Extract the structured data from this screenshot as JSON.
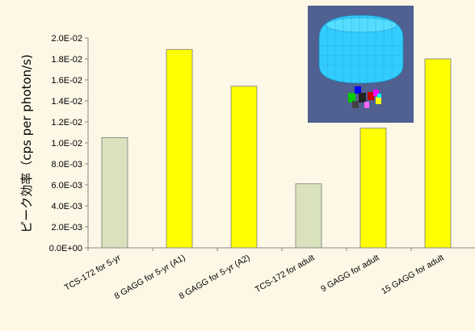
{
  "chart_data": {
    "type": "bar",
    "title": "",
    "xlabel": "",
    "ylabel": "ピーク効率（cps per photon/s)",
    "ylim": [
      0,
      0.02
    ],
    "yticks": [
      "0.0E+00",
      "2.0E-03",
      "4.0E-03",
      "6.0E-03",
      "8.0E-03",
      "1.0E-02",
      "1.2E-02",
      "1.4E-02",
      "1.6E-02",
      "1.8E-02",
      "2.0E-02"
    ],
    "categories": [
      "TCS-172 for 5-yr",
      "8 GAGG for 5-yr (A1)",
      "8 GAGG for 5-yr (A2)",
      "TCS-172 for adult",
      "9 GAGG for adult",
      "15 GAGG for adult"
    ],
    "values": [
      0.0105,
      0.0189,
      0.0154,
      0.0061,
      0.0114,
      0.018
    ],
    "bar_colors": [
      "#d9e2bc",
      "#ffff00",
      "#ffff00",
      "#d9e2bc",
      "#ffff00",
      "#ffff00"
    ],
    "grid": false,
    "legend": "none"
  },
  "inset": {
    "background": "#506090",
    "dome_color": "#33ccff",
    "crystal_colors": [
      "#00cc00",
      "#ff00ff",
      "#cc0000",
      "#0000ff",
      "#ffff00",
      "#ff66ff",
      "#00ffff"
    ]
  }
}
